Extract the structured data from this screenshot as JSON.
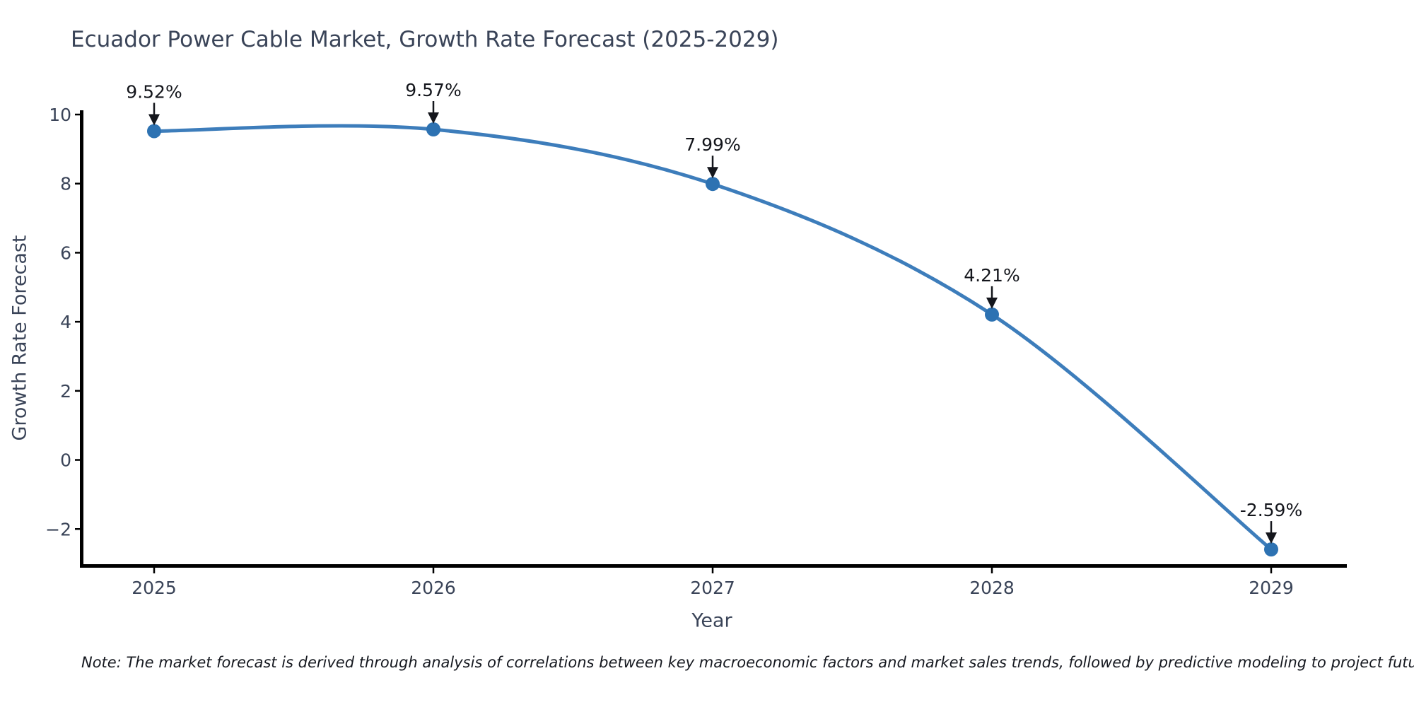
{
  "chart_data": {
    "type": "line",
    "title": "Ecuador Power Cable Market, Growth Rate Forecast (2025-2029)",
    "xlabel": "Year",
    "ylabel": "Growth Rate Forecast",
    "categories": [
      "2025",
      "2026",
      "2027",
      "2028",
      "2029"
    ],
    "values": [
      9.52,
      9.57,
      7.99,
      4.21,
      -2.59
    ],
    "point_labels": [
      "9.52%",
      "9.57%",
      "7.99%",
      "4.21%",
      "-2.59%"
    ],
    "y_ticks": [
      10,
      8,
      6,
      4,
      2,
      0,
      -2
    ],
    "y_tick_labels": [
      "10",
      "8",
      "6",
      "4",
      "2",
      "0",
      "−2"
    ],
    "ylim": [
      -3.06,
      10.14
    ],
    "grid": false,
    "legend": "none",
    "colors": {
      "line": "#3d7dbb",
      "marker": "#2d72b2",
      "axis": "#000000",
      "text": "#3a4458",
      "annotation": "#14161c"
    }
  },
  "footnote": {
    "text": "Note: The market forecast is derived through analysis of correlations between key macroeconomic factors and market sales trends, followed by predictive modeling to project future sales"
  }
}
